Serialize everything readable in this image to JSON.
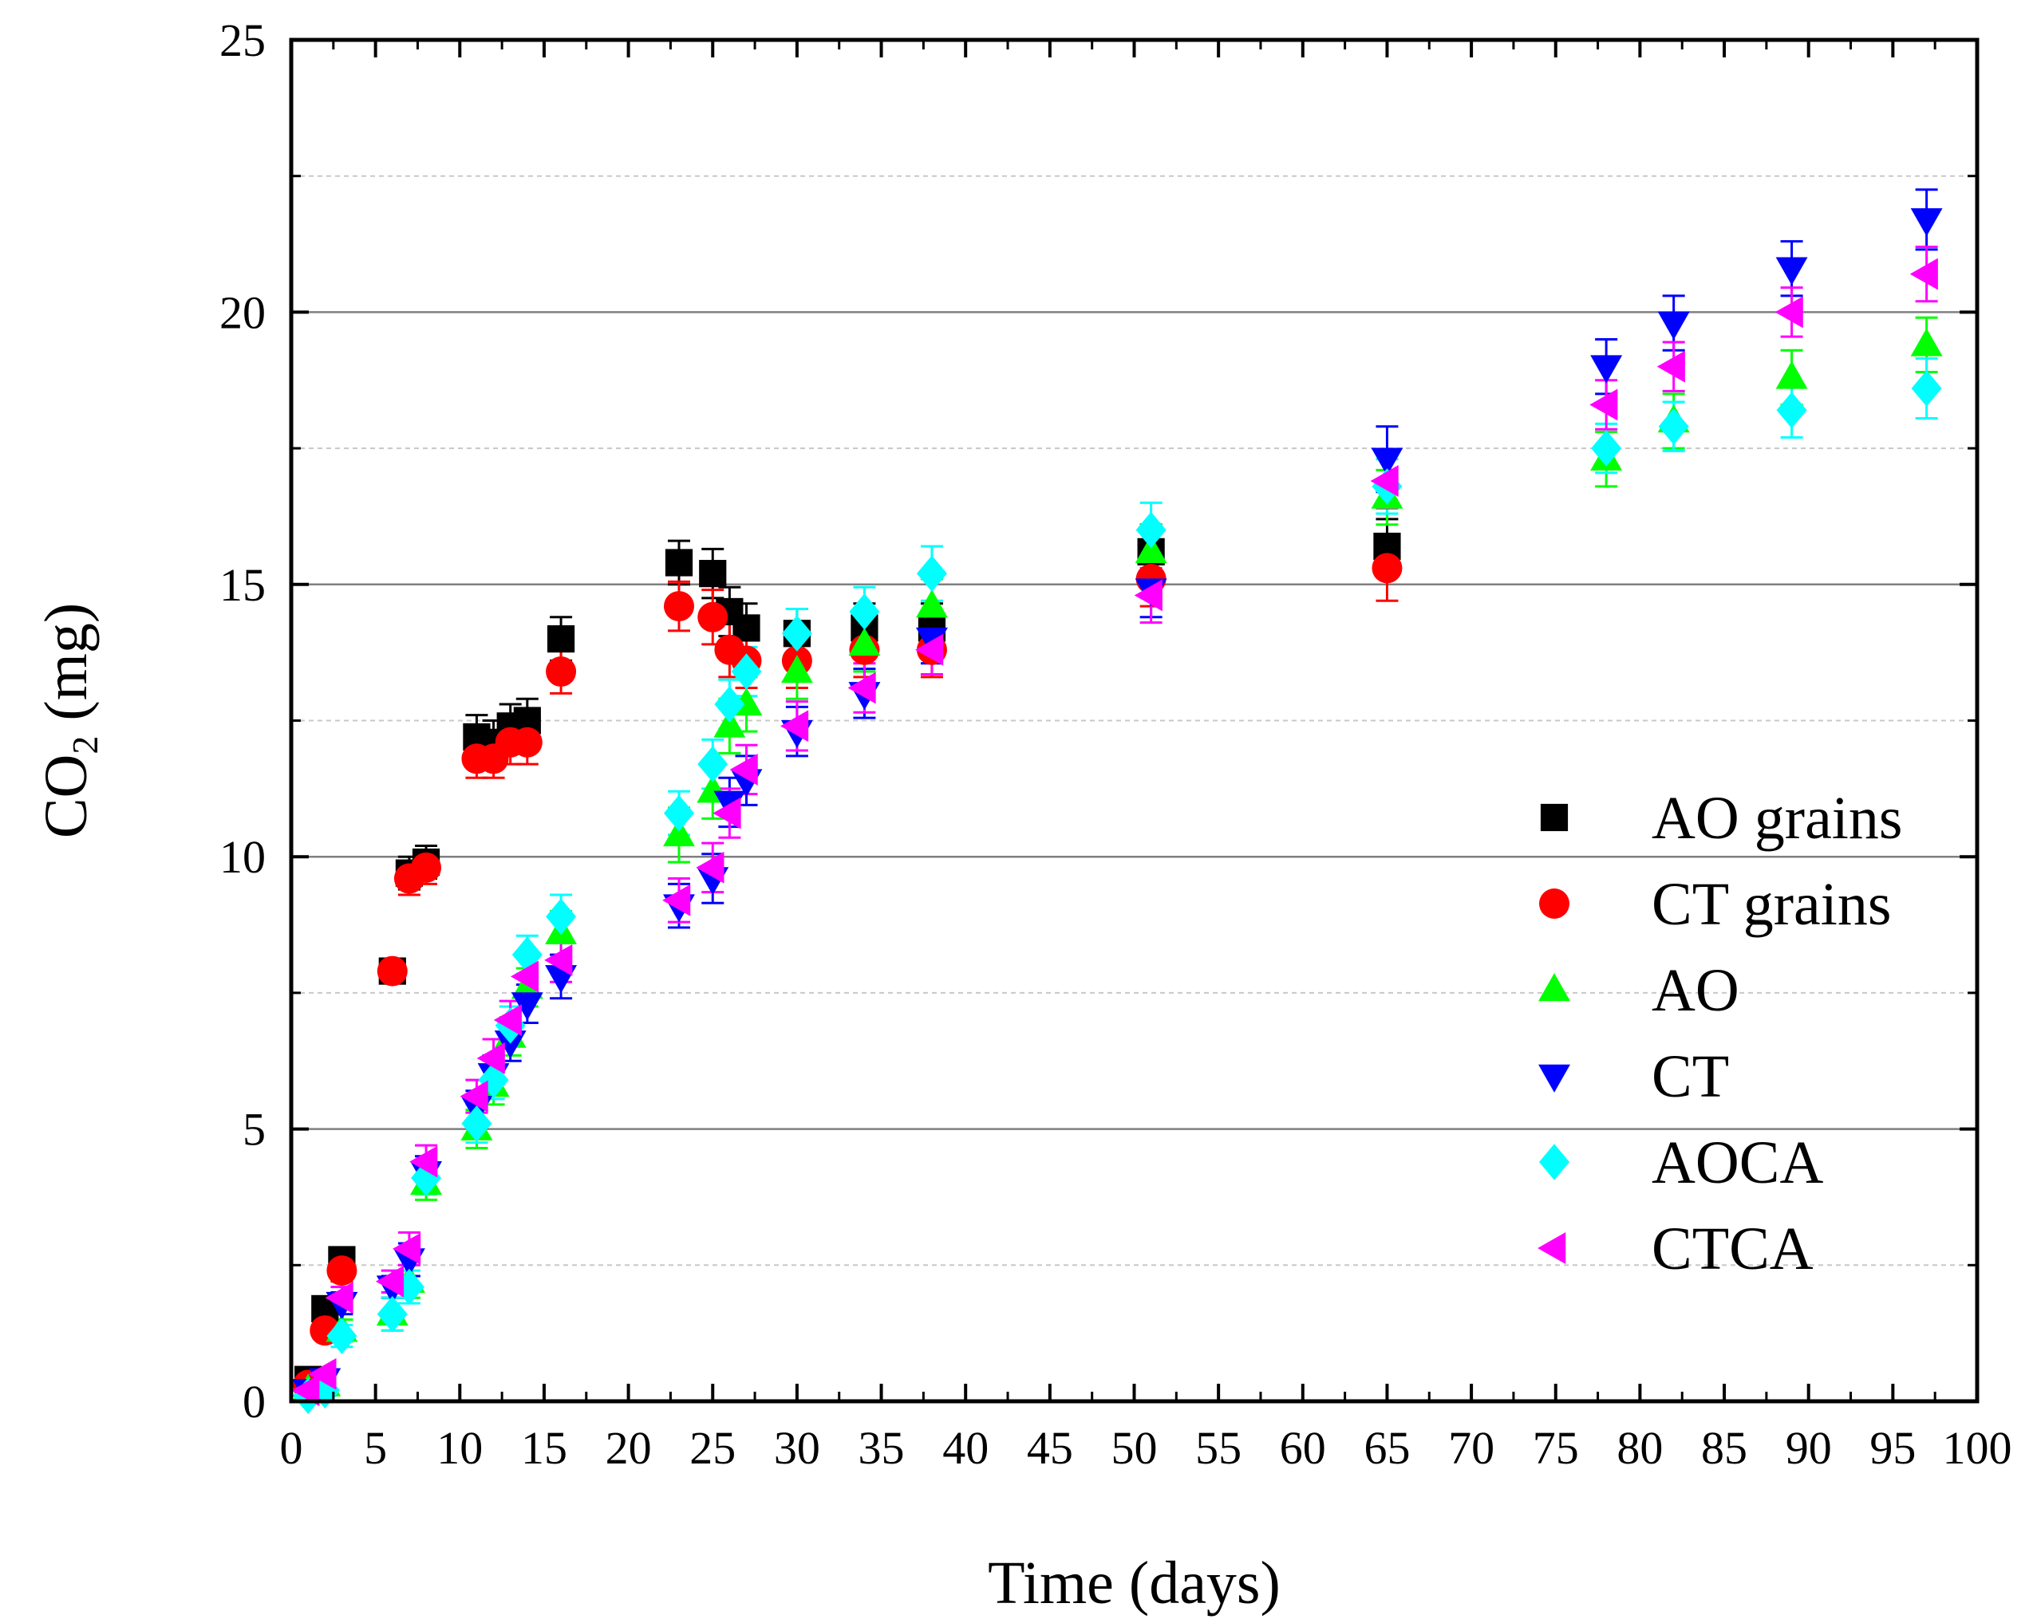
{
  "chart_data": {
    "type": "scatter",
    "title": "",
    "xlabel": "Time (days)",
    "ylabel_main": "CO",
    "ylabel_sub": "2",
    "ylabel_unit": " (mg)",
    "xlim": [
      0,
      100
    ],
    "ylim": [
      0,
      25
    ],
    "x_ticks": [
      0,
      5,
      10,
      15,
      20,
      25,
      30,
      35,
      40,
      45,
      50,
      55,
      60,
      65,
      70,
      75,
      80,
      85,
      90,
      95,
      100
    ],
    "y_ticks": [
      0,
      5,
      10,
      15,
      20,
      25
    ],
    "grid_major_y": [
      5,
      10,
      15,
      20
    ],
    "grid_minor_y": [
      2.5,
      7.5,
      12.5,
      17.5,
      22.5
    ],
    "legend_position": "right",
    "series": [
      {
        "name": "AO grains",
        "marker": "square",
        "color": "#000000",
        "x": [
          1,
          2,
          3,
          6,
          7,
          8,
          11,
          12,
          13,
          14,
          16,
          23,
          25,
          26,
          27,
          30,
          34,
          38,
          51,
          65
        ],
        "y": [
          0.4,
          1.7,
          2.6,
          7.9,
          9.7,
          9.9,
          12.2,
          12.1,
          12.4,
          12.5,
          14.0,
          15.4,
          15.2,
          14.5,
          14.2,
          14.1,
          14.2,
          14.2,
          15.6,
          15.7
        ],
        "err": [
          0.1,
          0.2,
          0.2,
          0.2,
          0.3,
          0.3,
          0.4,
          0.4,
          0.4,
          0.4,
          0.4,
          0.4,
          0.45,
          0.45,
          0.45,
          0.45,
          0.45,
          0.45,
          0.5,
          0.5
        ]
      },
      {
        "name": "CT grains",
        "marker": "circle",
        "color": "#ff0000",
        "x": [
          1,
          2,
          3,
          6,
          7,
          8,
          11,
          12,
          13,
          14,
          16,
          23,
          25,
          26,
          27,
          30,
          34,
          38,
          51,
          65
        ],
        "y": [
          0.3,
          1.3,
          2.4,
          7.9,
          9.6,
          9.8,
          11.8,
          11.8,
          12.1,
          12.1,
          13.4,
          14.6,
          14.4,
          13.8,
          13.6,
          13.6,
          13.8,
          13.8,
          15.1,
          15.3
        ],
        "err": [
          0.1,
          0.15,
          0.2,
          0.2,
          0.3,
          0.3,
          0.35,
          0.35,
          0.4,
          0.4,
          0.4,
          0.45,
          0.5,
          0.5,
          0.5,
          0.5,
          0.5,
          0.5,
          0.5,
          0.6
        ]
      },
      {
        "name": "AO",
        "marker": "triangle-up",
        "color": "#00ff00",
        "x": [
          1,
          2,
          3,
          6,
          7,
          8,
          11,
          12,
          13,
          14,
          16,
          23,
          25,
          26,
          27,
          30,
          34,
          38,
          51,
          65,
          78,
          82,
          89,
          97
        ],
        "y": [
          0.2,
          0.3,
          1.3,
          1.6,
          2.2,
          4.0,
          5.0,
          5.8,
          6.7,
          7.6,
          8.6,
          10.4,
          11.2,
          12.4,
          12.8,
          13.4,
          13.9,
          14.6,
          15.6,
          16.6,
          17.3,
          18.0,
          18.8,
          19.4
        ],
        "err": [
          0.1,
          0.1,
          0.2,
          0.3,
          0.3,
          0.3,
          0.35,
          0.35,
          0.35,
          0.35,
          0.4,
          0.5,
          0.5,
          0.5,
          0.5,
          0.5,
          0.5,
          0.5,
          0.5,
          0.5,
          0.5,
          0.5,
          0.5,
          0.5
        ]
      },
      {
        "name": "CT",
        "marker": "triangle-down",
        "color": "#0000ff",
        "x": [
          1,
          2,
          3,
          6,
          7,
          8,
          11,
          12,
          13,
          14,
          16,
          23,
          25,
          26,
          27,
          30,
          34,
          38,
          51,
          65,
          78,
          82,
          89,
          97
        ],
        "y": [
          0.2,
          0.4,
          1.8,
          2.1,
          2.6,
          4.2,
          5.4,
          6.0,
          6.6,
          7.3,
          7.8,
          9.1,
          9.6,
          11.0,
          11.4,
          12.3,
          13.0,
          14.0,
          14.9,
          17.3,
          19.0,
          19.8,
          20.8,
          21.7
        ],
        "err": [
          0.1,
          0.1,
          0.2,
          0.2,
          0.3,
          0.3,
          0.3,
          0.35,
          0.35,
          0.35,
          0.4,
          0.4,
          0.45,
          0.45,
          0.45,
          0.45,
          0.45,
          0.45,
          0.5,
          0.6,
          0.5,
          0.5,
          0.5,
          0.55
        ]
      },
      {
        "name": "AOCA",
        "marker": "diamond",
        "color": "#00ffff",
        "x": [
          1,
          2,
          3,
          6,
          7,
          8,
          11,
          12,
          13,
          14,
          16,
          23,
          25,
          26,
          27,
          30,
          34,
          38,
          51,
          65,
          78,
          82,
          89,
          97
        ],
        "y": [
          0.1,
          0.2,
          1.2,
          1.6,
          2.1,
          4.1,
          5.1,
          5.9,
          6.9,
          8.2,
          8.9,
          10.8,
          11.7,
          12.8,
          13.4,
          14.1,
          14.5,
          15.2,
          16.0,
          16.8,
          17.5,
          17.9,
          18.2,
          18.6
        ],
        "err": [
          0.1,
          0.1,
          0.2,
          0.3,
          0.3,
          0.3,
          0.35,
          0.35,
          0.35,
          0.35,
          0.4,
          0.4,
          0.45,
          0.45,
          0.45,
          0.45,
          0.45,
          0.5,
          0.5,
          0.5,
          0.45,
          0.45,
          0.5,
          0.55
        ]
      },
      {
        "name": "CTCA",
        "marker": "triangle-left",
        "color": "#ff00ff",
        "x": [
          1,
          2,
          3,
          6,
          7,
          8,
          11,
          12,
          13,
          14,
          16,
          23,
          25,
          26,
          27,
          30,
          34,
          38,
          51,
          65,
          78,
          82,
          89,
          97
        ],
        "y": [
          0.2,
          0.5,
          1.9,
          2.2,
          2.8,
          4.4,
          5.6,
          6.3,
          7.0,
          7.8,
          8.1,
          9.2,
          9.8,
          10.8,
          11.6,
          12.4,
          13.1,
          13.8,
          14.8,
          16.9,
          18.3,
          19.0,
          20.0,
          20.7
        ],
        "err": [
          0.1,
          0.1,
          0.2,
          0.2,
          0.3,
          0.3,
          0.3,
          0.35,
          0.35,
          0.35,
          0.4,
          0.4,
          0.45,
          0.45,
          0.45,
          0.45,
          0.45,
          0.45,
          0.5,
          0.5,
          0.45,
          0.45,
          0.45,
          0.5
        ]
      }
    ]
  }
}
